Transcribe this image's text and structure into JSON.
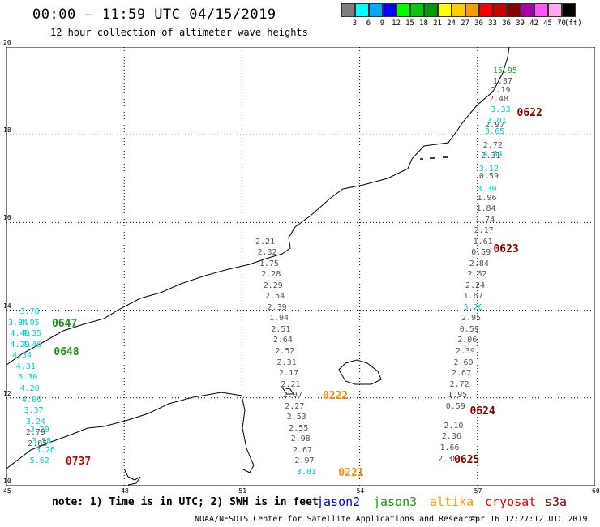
{
  "header": {
    "title": "00:00 – 11:59 UTC 04/15/2019",
    "subtitle": "12 hour collection of altimeter wave heights"
  },
  "legend": {
    "unit": "(ft)",
    "bins": [
      {
        "label": "3",
        "color": "#7f7f7f"
      },
      {
        "label": "6",
        "color": "#00ffff"
      },
      {
        "label": "9",
        "color": "#00aaff"
      },
      {
        "label": "12",
        "color": "#0000ff"
      },
      {
        "label": "15",
        "color": "#00ff00"
      },
      {
        "label": "18",
        "color": "#00cc00"
      },
      {
        "label": "21",
        "color": "#009900"
      },
      {
        "label": "24",
        "color": "#ffff00"
      },
      {
        "label": "27",
        "color": "#ffcc00"
      },
      {
        "label": "30",
        "color": "#ff9900"
      },
      {
        "label": "33",
        "color": "#ff0000"
      },
      {
        "label": "36",
        "color": "#cc0000"
      },
      {
        "label": "39",
        "color": "#880000"
      },
      {
        "label": "42",
        "color": "#aa00aa"
      },
      {
        "label": "45",
        "color": "#ff55ff"
      },
      {
        "label": "70",
        "color": "#ffaaee"
      },
      {
        "label": "",
        "color": "#000000"
      }
    ]
  },
  "map": {
    "lon_ticks": [
      "45",
      "48",
      "51",
      "54",
      "57",
      "60"
    ],
    "lat_ticks": [
      "20",
      "18",
      "16",
      "14",
      "12",
      "10"
    ],
    "extent": {
      "lon": [
        45,
        60
      ],
      "lat": [
        10,
        20
      ]
    }
  },
  "tracks": [
    {
      "satellite": "cryosat",
      "color": "#555555",
      "obs": [
        {
          "lon": 57.6,
          "lat": 19.2,
          "v": "1.37"
        },
        {
          "lon": 57.55,
          "lat": 19.0,
          "v": "2.19"
        },
        {
          "lon": 57.5,
          "lat": 18.8,
          "v": "2.48"
        },
        {
          "lon": 57.4,
          "lat": 18.2,
          "v": "2.97"
        },
        {
          "lon": 57.35,
          "lat": 17.75,
          "v": "2.72"
        },
        {
          "lon": 57.3,
          "lat": 17.5,
          "v": "2.31"
        },
        {
          "lon": 57.25,
          "lat": 17.05,
          "v": "0.59"
        },
        {
          "lon": 57.2,
          "lat": 16.55,
          "v": "1.96"
        },
        {
          "lon": 57.18,
          "lat": 16.3,
          "v": "1.84"
        },
        {
          "lon": 57.15,
          "lat": 16.05,
          "v": "1.74"
        },
        {
          "lon": 57.12,
          "lat": 15.8,
          "v": "2.17"
        },
        {
          "lon": 57.1,
          "lat": 15.55,
          "v": "1.61"
        },
        {
          "lon": 57.05,
          "lat": 15.3,
          "v": "0.59"
        },
        {
          "lon": 57.0,
          "lat": 15.05,
          "v": "2.84"
        },
        {
          "lon": 56.95,
          "lat": 14.8,
          "v": "2.62"
        },
        {
          "lon": 56.9,
          "lat": 14.55,
          "v": "2.24"
        },
        {
          "lon": 56.85,
          "lat": 14.3,
          "v": "1.67"
        },
        {
          "lon": 56.8,
          "lat": 13.8,
          "v": "2.95"
        },
        {
          "lon": 56.75,
          "lat": 13.55,
          "v": "0.59"
        },
        {
          "lon": 56.7,
          "lat": 13.3,
          "v": "2.06"
        },
        {
          "lon": 56.65,
          "lat": 13.05,
          "v": "2.39"
        },
        {
          "lon": 56.6,
          "lat": 12.8,
          "v": "2.60"
        },
        {
          "lon": 56.55,
          "lat": 12.55,
          "v": "2.67"
        },
        {
          "lon": 56.5,
          "lat": 12.3,
          "v": "2.72"
        },
        {
          "lon": 56.45,
          "lat": 12.05,
          "v": "1.95"
        },
        {
          "lon": 56.4,
          "lat": 11.8,
          "v": "0.59"
        },
        {
          "lon": 56.35,
          "lat": 11.35,
          "v": "2.10"
        },
        {
          "lon": 56.3,
          "lat": 11.1,
          "v": "2.36"
        },
        {
          "lon": 56.25,
          "lat": 10.85,
          "v": "1.66"
        },
        {
          "lon": 56.2,
          "lat": 10.6,
          "v": "2.38"
        }
      ]
    },
    {
      "satellite": "jason3",
      "color": "#00cccc",
      "obs": [
        {
          "lon": 57.55,
          "lat": 18.55,
          "v": "3.33"
        },
        {
          "lon": 57.45,
          "lat": 18.3,
          "v": "3.01"
        },
        {
          "lon": 57.4,
          "lat": 18.05,
          "v": "3.65"
        },
        {
          "lon": 57.35,
          "lat": 17.55,
          "v": "4.34"
        },
        {
          "lon": 57.25,
          "lat": 17.2,
          "v": "3.12"
        },
        {
          "lon": 57.2,
          "lat": 16.75,
          "v": "3.30"
        },
        {
          "lon": 56.85,
          "lat": 14.05,
          "v": "3.26"
        }
      ]
    },
    {
      "satellite": "cryosat",
      "color": "#555555",
      "obs": [
        {
          "lon": 51.55,
          "lat": 15.55,
          "v": "2.21"
        },
        {
          "lon": 51.6,
          "lat": 15.3,
          "v": "2.32"
        },
        {
          "lon": 51.65,
          "lat": 15.05,
          "v": "1.75"
        },
        {
          "lon": 51.7,
          "lat": 14.8,
          "v": "2.28"
        },
        {
          "lon": 51.75,
          "lat": 14.55,
          "v": "2.29"
        },
        {
          "lon": 51.8,
          "lat": 14.3,
          "v": "2.54"
        },
        {
          "lon": 51.85,
          "lat": 14.05,
          "v": "2.39"
        },
        {
          "lon": 51.9,
          "lat": 13.8,
          "v": "1.94"
        },
        {
          "lon": 51.95,
          "lat": 13.55,
          "v": "2.51"
        },
        {
          "lon": 52.0,
          "lat": 13.3,
          "v": "2.64"
        },
        {
          "lon": 52.05,
          "lat": 13.05,
          "v": "2.52"
        },
        {
          "lon": 52.1,
          "lat": 12.8,
          "v": "2.31"
        },
        {
          "lon": 52.15,
          "lat": 12.55,
          "v": "2.17"
        },
        {
          "lon": 52.2,
          "lat": 12.3,
          "v": "2.21"
        },
        {
          "lon": 52.25,
          "lat": 12.05,
          "v": "2.07"
        },
        {
          "lon": 52.3,
          "lat": 11.8,
          "v": "2.27"
        },
        {
          "lon": 52.35,
          "lat": 11.55,
          "v": "2.53"
        },
        {
          "lon": 52.4,
          "lat": 11.3,
          "v": "2.55"
        },
        {
          "lon": 52.45,
          "lat": 11.05,
          "v": "2.98"
        },
        {
          "lon": 52.5,
          "lat": 10.8,
          "v": "2.67"
        },
        {
          "lon": 52.55,
          "lat": 10.55,
          "v": "2.97"
        }
      ]
    },
    {
      "satellite": "jason3",
      "color": "#00cccc",
      "obs": [
        {
          "lon": 52.6,
          "lat": 10.3,
          "v": "3.01"
        },
        {
          "lon": 45.55,
          "lat": 13.95,
          "v": "3.78"
        },
        {
          "lon": 45.25,
          "lat": 13.7,
          "v": "3.84"
        },
        {
          "lon": 45.55,
          "lat": 13.7,
          "v": "4.05"
        },
        {
          "lon": 45.3,
          "lat": 13.45,
          "v": "4.49"
        },
        {
          "lon": 45.6,
          "lat": 13.45,
          "v": "4.35"
        },
        {
          "lon": 45.3,
          "lat": 13.2,
          "v": "4.29"
        },
        {
          "lon": 45.6,
          "lat": 13.2,
          "v": "4.46"
        },
        {
          "lon": 45.35,
          "lat": 12.95,
          "v": "4.34"
        },
        {
          "lon": 45.45,
          "lat": 12.7,
          "v": "4.31"
        },
        {
          "lon": 45.5,
          "lat": 12.45,
          "v": "6.30"
        },
        {
          "lon": 45.55,
          "lat": 12.2,
          "v": "4.20"
        },
        {
          "lon": 45.6,
          "lat": 11.95,
          "v": "4.06"
        },
        {
          "lon": 45.65,
          "lat": 11.7,
          "v": "3.37"
        },
        {
          "lon": 45.7,
          "lat": 11.45,
          "v": "3.24"
        },
        {
          "lon": 45.8,
          "lat": 11.25,
          "v": "3.20"
        },
        {
          "lon": 45.85,
          "lat": 11.0,
          "v": "3.58"
        },
        {
          "lon": 45.95,
          "lat": 10.8,
          "v": "3.26"
        },
        {
          "lon": 45.8,
          "lat": 10.55,
          "v": "5.62"
        }
      ]
    },
    {
      "satellite": "cryosat",
      "color": "#555555",
      "obs": [
        {
          "lon": 45.7,
          "lat": 11.2,
          "v": "2.79"
        },
        {
          "lon": 45.75,
          "lat": 10.95,
          "v": "2.85"
        }
      ]
    },
    {
      "satellite": "jason3",
      "color": "#22aa22",
      "obs": [
        {
          "lon": 57.6,
          "lat": 19.45,
          "v": "15.95"
        }
      ]
    }
  ],
  "time_labels": [
    {
      "lon": 57.8,
      "lat": 18.5,
      "text": "0622",
      "color": "#880000"
    },
    {
      "lon": 57.2,
      "lat": 15.4,
      "text": "0623",
      "color": "#880000"
    },
    {
      "lon": 56.6,
      "lat": 11.7,
      "text": "0624",
      "color": "#880000"
    },
    {
      "lon": 56.2,
      "lat": 10.6,
      "text": "0625",
      "color": "#880000"
    },
    {
      "lon": 52.85,
      "lat": 12.05,
      "text": "0222",
      "color": "#ff8800"
    },
    {
      "lon": 53.25,
      "lat": 10.3,
      "text": "0221",
      "color": "#ff8800"
    },
    {
      "lon": 45.95,
      "lat": 13.7,
      "text": "0647",
      "color": "#228b22"
    },
    {
      "lon": 46.0,
      "lat": 13.05,
      "text": "0648",
      "color": "#228b22"
    },
    {
      "lon": 46.3,
      "lat": 10.55,
      "text": "0737",
      "color": "#cc0000"
    }
  ],
  "footer": {
    "note": "note: 1) Time is in UTC; 2) SWH is in feet",
    "satellites": [
      {
        "name": "jason2",
        "color": "#0000dd"
      },
      {
        "name": "jason3",
        "color": "#119911"
      },
      {
        "name": "altika",
        "color": "#ff9900"
      },
      {
        "name": "cryosat",
        "color": "#dd0000"
      },
      {
        "name": "s3a",
        "color": "#880000"
      }
    ],
    "credit": "NOAA/NESDIS Center for Satellite Applications and Research",
    "timestamp": "Apr 16 12:27:12 UTC 2019"
  }
}
